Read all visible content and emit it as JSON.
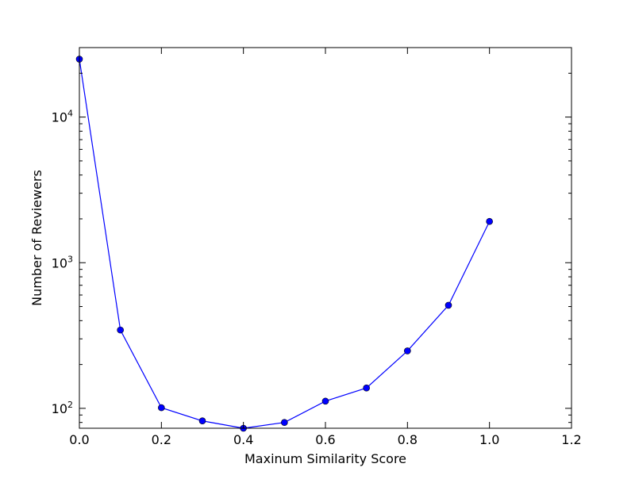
{
  "chart_data": {
    "type": "line",
    "title": "",
    "xlabel": "Maxinum Similarity Score",
    "ylabel": "Number of Reviewers",
    "xscale": "linear",
    "yscale": "log",
    "xlim": [
      0.0,
      1.2
    ],
    "ylim": [
      73,
      30000
    ],
    "grid": false,
    "legend": "none",
    "x_ticks": [
      "0.0",
      "0.2",
      "0.4",
      "0.6",
      "0.8",
      "1.0",
      "1.2"
    ],
    "y_ticks": [
      {
        "value": 100,
        "base": "10",
        "exp": "2"
      },
      {
        "value": 1000,
        "base": "10",
        "exp": "3"
      },
      {
        "value": 10000,
        "base": "10",
        "exp": "4"
      }
    ],
    "series": [
      {
        "color": "#0000ff",
        "marker": "circle",
        "x": [
          0.0,
          0.1,
          0.2,
          0.3,
          0.4,
          0.5,
          0.6,
          0.7,
          0.8,
          0.9,
          1.0
        ],
        "y": [
          25000,
          345,
          101,
          82,
          73,
          80,
          112,
          138,
          248,
          510,
          1920
        ]
      }
    ]
  }
}
